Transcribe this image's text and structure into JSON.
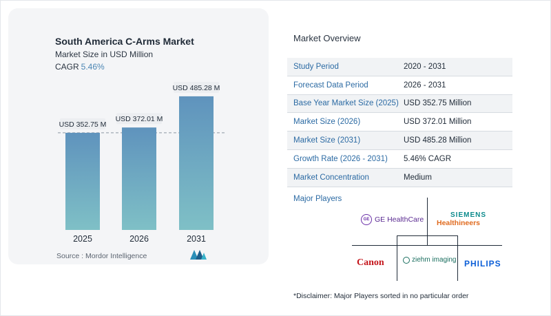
{
  "chart_data": {
    "type": "bar",
    "title": "South America C-Arms Market",
    "subtitle": "Market Size in USD Million",
    "cagr_label": "CAGR",
    "cagr_value": "5.46%",
    "categories": [
      "2025",
      "2026",
      "2031"
    ],
    "values": [
      352.75,
      372.01,
      485.28
    ],
    "value_labels": [
      "USD 352.75 M",
      "USD 372.01 M",
      "USD 485.28 M"
    ],
    "ylim": [
      0,
      500
    ],
    "grid": false,
    "reference_line": "dashed at 2025 value",
    "colors": {
      "bar_top": "#5f93bd",
      "bar_bottom": "#7fc0c6",
      "dashed_line": "#8a96a3"
    }
  },
  "source": "Source :  Mordor Intelligence",
  "overview": {
    "title": "Market Overview",
    "rows": [
      {
        "label": "Study Period",
        "value": "2020 - 2031"
      },
      {
        "label": "Forecast Data Period",
        "value": "2026 - 2031"
      },
      {
        "label": "Base Year Market Size (2025)",
        "value": "USD 352.75 Million"
      },
      {
        "label": "Market Size (2026)",
        "value": "USD 372.01 Million"
      },
      {
        "label": "Market Size (2031)",
        "value": "USD 485.28 Million"
      },
      {
        "label": "Growth Rate (2026 - 2031)",
        "value": "5.46% CAGR"
      },
      {
        "label": "Market Concentration",
        "value": "Medium"
      }
    ]
  },
  "players": {
    "title": "Major Players",
    "logos": {
      "ge": "GE HealthCare",
      "ge_mark": "GE",
      "siemens_top": "SIEMENS",
      "siemens_bottom": "Healthineers",
      "canon": "Canon",
      "ziehm": "ziehm imaging",
      "philips": "PHILIPS"
    }
  },
  "disclaimer": "*Disclaimer: Major Players sorted in no particular order"
}
